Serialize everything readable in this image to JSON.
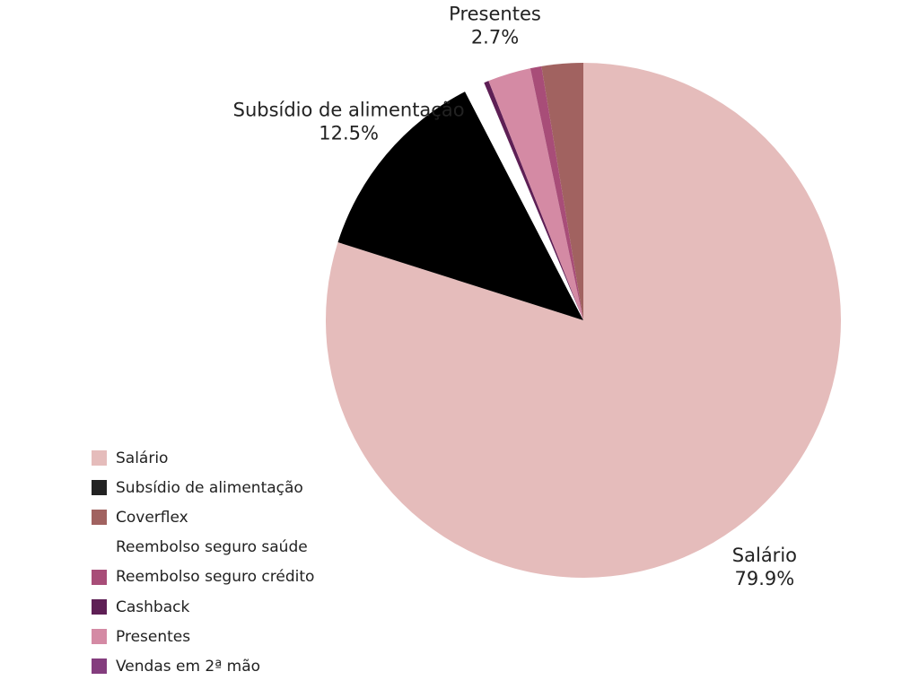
{
  "chart_data": {
    "type": "pie",
    "title": "",
    "start_angle_deg": 0,
    "direction": "clockwise",
    "slices": [
      {
        "label": "Salário",
        "value": 79.9,
        "color": "#e5bcbb",
        "show_label": true,
        "display_value": "79.9%"
      },
      {
        "label": "Subsídio de alimentação",
        "value": 12.5,
        "color": "#000000",
        "show_label": true,
        "display_value": "12.5%"
      },
      {
        "label": "Reembolso seguro saúde",
        "value": 1.3,
        "color": "#ffffff",
        "show_label": false,
        "display_value": ""
      },
      {
        "label": "Cashback",
        "value": 0.3,
        "color": "#5e1f55",
        "show_label": false,
        "display_value": ""
      },
      {
        "label": "Presentes",
        "value": 2.7,
        "color": "#d48aa4",
        "show_label": true,
        "display_value": "2.7%"
      },
      {
        "label": "Reembolso seguro crédito",
        "value": 0.7,
        "color": "#a84d78",
        "show_label": false,
        "display_value": ""
      },
      {
        "label": "Coverflex",
        "value": 2.6,
        "color": "#a16260",
        "show_label": false,
        "display_value": ""
      }
    ],
    "legend": {
      "position": "bottom-left",
      "entries": [
        {
          "label": "Salário",
          "color": "#e5bcbb"
        },
        {
          "label": "Subsídio de alimentação",
          "color": "#222222"
        },
        {
          "label": "Coverflex",
          "color": "#a16260"
        },
        {
          "label": "Reembolso seguro saúde",
          "color": "#ffffff"
        },
        {
          "label": "Reembolso seguro crédito",
          "color": "#a84d78"
        },
        {
          "label": "Cashback",
          "color": "#5e1f55"
        },
        {
          "label": "Presentes",
          "color": "#d48aa4"
        },
        {
          "label": "Vendas em 2ª mão",
          "color": "#843d7e"
        }
      ]
    }
  }
}
